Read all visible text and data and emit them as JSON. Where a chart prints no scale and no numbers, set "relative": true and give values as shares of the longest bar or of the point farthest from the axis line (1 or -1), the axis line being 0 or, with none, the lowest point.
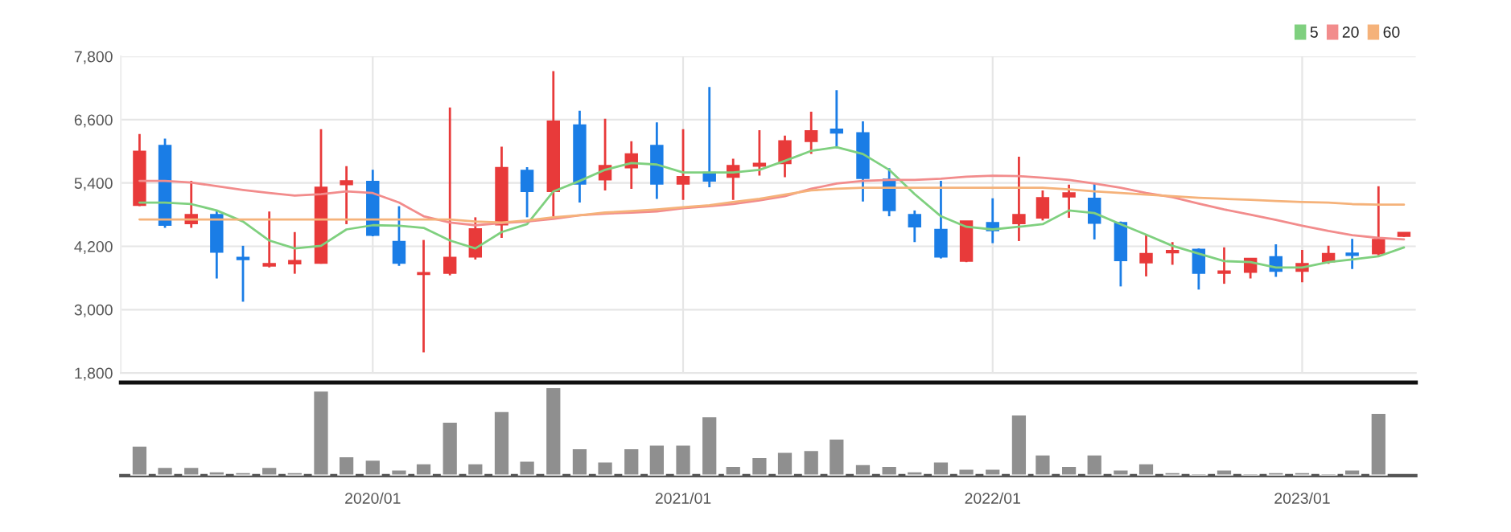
{
  "chart_data": [
    {
      "type": "candlestick",
      "x": [
        "2019-04",
        "2019-05",
        "2019-06",
        "2019-07",
        "2019-08",
        "2019-09",
        "2019-10",
        "2019-11",
        "2019-12",
        "2020-01",
        "2020-02",
        "2020-03",
        "2020-04",
        "2020-05",
        "2020-06",
        "2020-07",
        "2020-08",
        "2020-09",
        "2020-10",
        "2020-11",
        "2020-12",
        "2021-01",
        "2021-02",
        "2021-03",
        "2021-04",
        "2021-05",
        "2021-06",
        "2021-07",
        "2021-08",
        "2021-09",
        "2021-10",
        "2021-11",
        "2021-12",
        "2022-01",
        "2022-02",
        "2022-03",
        "2022-04",
        "2022-05",
        "2022-06",
        "2022-07",
        "2022-08",
        "2022-09",
        "2022-10",
        "2022-11",
        "2022-12",
        "2023-01",
        "2023-02",
        "2023-03",
        "2023-04",
        "2023-05"
      ],
      "ohlc": [
        [
          4980,
          6330,
          4960,
          6000
        ],
        [
          6110,
          6240,
          4550,
          4600
        ],
        [
          4630,
          5440,
          4550,
          4800
        ],
        [
          4800,
          4880,
          3590,
          4090
        ],
        [
          3990,
          4210,
          3150,
          3950
        ],
        [
          3830,
          4860,
          3800,
          3870
        ],
        [
          3870,
          4470,
          3680,
          3930
        ],
        [
          3880,
          6420,
          3870,
          5320
        ],
        [
          5370,
          5720,
          4620,
          5440
        ],
        [
          5430,
          5650,
          4390,
          4410
        ],
        [
          4290,
          4960,
          3830,
          3880
        ],
        [
          3670,
          4320,
          2190,
          3700
        ],
        [
          3690,
          6830,
          3650,
          3990
        ],
        [
          4000,
          4750,
          3950,
          4530
        ],
        [
          4610,
          6090,
          4360,
          5690
        ],
        [
          5640,
          5700,
          4750,
          5240
        ],
        [
          5240,
          7520,
          4770,
          6570
        ],
        [
          6500,
          6770,
          5030,
          5380
        ],
        [
          5460,
          6620,
          5260,
          5730
        ],
        [
          5690,
          6190,
          5290,
          5950
        ],
        [
          6110,
          6550,
          5100,
          5380
        ],
        [
          5380,
          6420,
          5080,
          5520
        ],
        [
          5600,
          7220,
          5320,
          5440
        ],
        [
          5510,
          5860,
          5080,
          5730
        ],
        [
          5720,
          6400,
          5540,
          5770
        ],
        [
          5770,
          6300,
          5510,
          6200
        ],
        [
          6190,
          6750,
          5950,
          6390
        ],
        [
          6420,
          7160,
          6060,
          6350
        ],
        [
          6350,
          6570,
          5050,
          5490
        ],
        [
          5470,
          5680,
          4770,
          4880
        ],
        [
          4800,
          4880,
          4280,
          4570
        ],
        [
          4520,
          5440,
          3970,
          4000
        ],
        [
          3920,
          4680,
          3900,
          4680
        ],
        [
          4650,
          5110,
          4260,
          4500
        ],
        [
          4630,
          5900,
          4300,
          4800
        ],
        [
          4740,
          5260,
          4690,
          5120
        ],
        [
          5140,
          5370,
          4740,
          5210
        ],
        [
          5110,
          5390,
          4330,
          4640
        ],
        [
          4650,
          4670,
          3440,
          3930
        ],
        [
          3890,
          4420,
          3630,
          4060
        ],
        [
          4080,
          4280,
          3850,
          4120
        ],
        [
          4140,
          4160,
          3380,
          3690
        ],
        [
          3690,
          4180,
          3490,
          3730
        ],
        [
          3710,
          3970,
          3590,
          3970
        ],
        [
          4000,
          4240,
          3620,
          3730
        ],
        [
          3730,
          4130,
          3520,
          3870
        ],
        [
          3910,
          4210,
          3870,
          4060
        ],
        [
          4070,
          4340,
          3770,
          4030
        ],
        [
          4060,
          5340,
          4030,
          4330
        ],
        [
          4390,
          4460,
          4380,
          4460
        ]
      ],
      "colors": [
        "#e83a3a",
        "#1a7de6",
        "#e83a3a",
        "#1a7de6",
        "#1a7de6",
        "#e83a3a",
        "#e83a3a",
        "#e83a3a",
        "#e83a3a",
        "#1a7de6",
        "#1a7de6",
        "#e83a3a",
        "#e83a3a",
        "#e83a3a",
        "#e83a3a",
        "#1a7de6",
        "#e83a3a",
        "#1a7de6",
        "#e83a3a",
        "#e83a3a",
        "#1a7de6",
        "#e83a3a",
        "#1a7de6",
        "#e83a3a",
        "#e83a3a",
        "#e83a3a",
        "#e83a3a",
        "#1a7de6",
        "#1a7de6",
        "#1a7de6",
        "#1a7de6",
        "#1a7de6",
        "#e83a3a",
        "#1a7de6",
        "#e83a3a",
        "#e83a3a",
        "#e83a3a",
        "#1a7de6",
        "#1a7de6",
        "#e83a3a",
        "#e83a3a",
        "#1a7de6",
        "#e83a3a",
        "#e83a3a",
        "#1a7de6",
        "#e83a3a",
        "#e83a3a",
        "#1a7de6",
        "#e83a3a",
        "#e83a3a"
      ],
      "series": [
        {
          "name": "5",
          "type": "line",
          "color": "#7fd07f",
          "values": [
            5030,
            5030,
            5000,
            4880,
            4670,
            4310,
            4160,
            4210,
            4520,
            4600,
            4590,
            4550,
            4310,
            4160,
            4470,
            4620,
            5240,
            5440,
            5650,
            5780,
            5750,
            5600,
            5600,
            5600,
            5650,
            5820,
            6010,
            6080,
            5950,
            5650,
            5190,
            4770,
            4570,
            4520,
            4570,
            4620,
            4880,
            4830,
            4620,
            4420,
            4210,
            4060,
            3920,
            3900,
            3800,
            3800,
            3900,
            3950,
            4010,
            4180
          ]
        },
        {
          "name": "20",
          "type": "line",
          "color": "#f28c8c",
          "values": [
            5440,
            5440,
            5410,
            5340,
            5270,
            5210,
            5160,
            5190,
            5240,
            5210,
            5030,
            4770,
            4650,
            4600,
            4640,
            4670,
            4720,
            4790,
            4820,
            4840,
            4860,
            4920,
            4960,
            5000,
            5070,
            5150,
            5290,
            5390,
            5440,
            5460,
            5460,
            5480,
            5520,
            5540,
            5530,
            5500,
            5460,
            5390,
            5310,
            5210,
            5130,
            5010,
            4900,
            4800,
            4700,
            4590,
            4490,
            4410,
            4360,
            4330
          ]
        },
        {
          "name": "60",
          "type": "line",
          "color": "#f5b27a",
          "values": [
            4710,
            4710,
            4710,
            4710,
            4710,
            4710,
            4710,
            4710,
            4710,
            4710,
            4710,
            4710,
            4710,
            4670,
            4650,
            4690,
            4750,
            4790,
            4840,
            4870,
            4900,
            4940,
            4980,
            5040,
            5100,
            5180,
            5260,
            5290,
            5310,
            5310,
            5310,
            5310,
            5310,
            5310,
            5310,
            5310,
            5280,
            5240,
            5210,
            5180,
            5150,
            5120,
            5100,
            5080,
            5060,
            5040,
            5030,
            5000,
            4990,
            4990
          ]
        }
      ],
      "xlim": [
        "2019-03-10",
        "2023-05-15"
      ],
      "xticks": [
        {
          "value": "2020-01",
          "label": null
        },
        {
          "value": "2021-01",
          "label": null
        },
        {
          "value": "2022-01",
          "label": null
        },
        {
          "value": "2023-01",
          "label": null
        }
      ],
      "ylim": [
        1800,
        7800
      ],
      "yticks": [
        {
          "value": 1800,
          "label": "1,800"
        },
        {
          "value": 3000,
          "label": "3,000"
        },
        {
          "value": 4200,
          "label": "4,200"
        },
        {
          "value": 5400,
          "label": "5,400"
        },
        {
          "value": 6600,
          "label": "6,600"
        },
        {
          "value": 7800,
          "label": "7,800"
        }
      ],
      "grid": true,
      "legend": "top right",
      "tick_labels": "y"
    },
    {
      "type": "bar",
      "relative": true,
      "x": [
        "2019-04",
        "2019-05",
        "2019-06",
        "2019-07",
        "2019-08",
        "2019-09",
        "2019-10",
        "2019-11",
        "2019-12",
        "2020-01",
        "2020-02",
        "2020-03",
        "2020-04",
        "2020-05",
        "2020-06",
        "2020-07",
        "2020-08",
        "2020-09",
        "2020-10",
        "2020-11",
        "2020-12",
        "2021-01",
        "2021-02",
        "2021-03",
        "2021-04",
        "2021-05",
        "2021-06",
        "2021-07",
        "2021-08",
        "2021-09",
        "2021-10",
        "2021-11",
        "2021-12",
        "2022-01",
        "2022-02",
        "2022-03",
        "2022-04",
        "2022-05",
        "2022-06",
        "2022-07",
        "2022-08",
        "2022-09",
        "2022-10",
        "2022-11",
        "2022-12",
        "2023-01",
        "2023-02",
        "2023-03",
        "2023-04"
      ],
      "values": [
        0.34,
        0.1,
        0.1,
        0.05,
        0.04,
        0.1,
        0.04,
        0.96,
        0.22,
        0.18,
        0.07,
        0.14,
        0.61,
        0.14,
        0.73,
        0.17,
        1.0,
        0.31,
        0.16,
        0.31,
        0.35,
        0.35,
        0.67,
        0.11,
        0.21,
        0.27,
        0.29,
        0.42,
        0.13,
        0.11,
        0.05,
        0.16,
        0.08,
        0.08,
        0.69,
        0.24,
        0.11,
        0.24,
        0.07,
        0.14,
        0.04,
        0.03,
        0.07,
        0.03,
        0.04,
        0.04,
        0.03,
        0.07,
        0.71
      ],
      "color": "#8f8f8f",
      "xlim": [
        "2019-03-10",
        "2023-05-15"
      ],
      "xticks": [
        {
          "value": "2020-01",
          "label": "2020/01"
        },
        {
          "value": "2021-01",
          "label": "2021/01"
        },
        {
          "value": "2022-01",
          "label": "2022/01"
        },
        {
          "value": "2023-01",
          "label": "2023/01"
        }
      ],
      "tick_labels": "x"
    }
  ]
}
